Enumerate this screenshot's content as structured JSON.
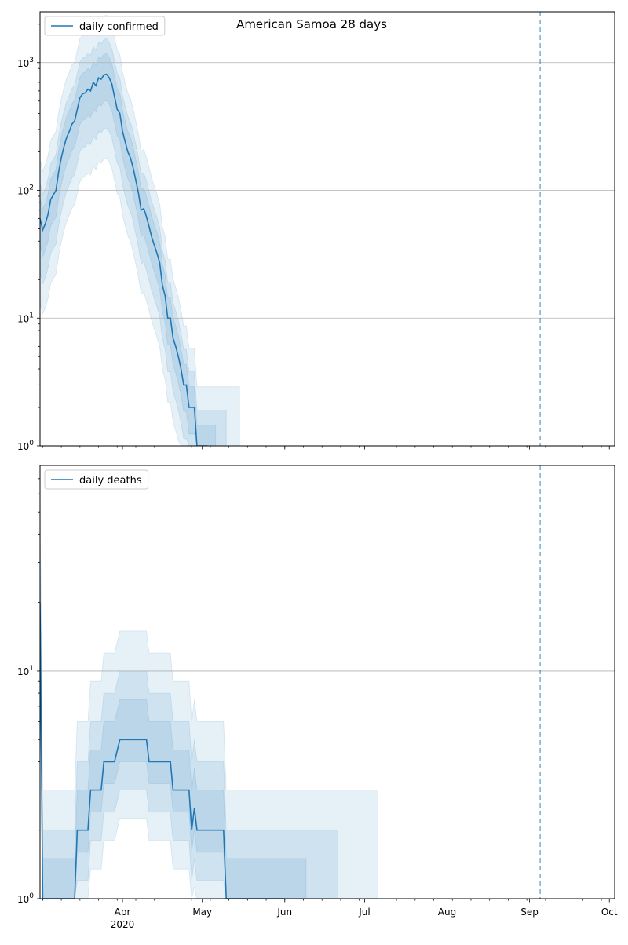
{
  "chart_data": {
    "type": "line",
    "title": "American Samoa 28 days",
    "x_range": [
      "2020-03-01",
      "2020-10-03"
    ],
    "x_ticks": [
      {
        "date": "2020-04-01",
        "label": "Apr",
        "sublabel": "2020"
      },
      {
        "date": "2020-05-01",
        "label": "May",
        "sublabel": ""
      },
      {
        "date": "2020-06-01",
        "label": "Jun",
        "sublabel": ""
      },
      {
        "date": "2020-07-01",
        "label": "Jul",
        "sublabel": ""
      },
      {
        "date": "2020-08-01",
        "label": "Aug",
        "sublabel": ""
      },
      {
        "date": "2020-09-01",
        "label": "Sep",
        "sublabel": ""
      },
      {
        "date": "2020-10-01",
        "label": "Oct",
        "sublabel": ""
      }
    ],
    "vline_date": "2020-09-05",
    "line_color": "#1f77b4",
    "band_color": "#1f77b4",
    "panels": [
      {
        "legend": "daily confirmed",
        "legend_position": "upper left",
        "scale": "log",
        "ylim": [
          1,
          2500
        ],
        "major_ticks": [
          {
            "value": 1,
            "base": "10",
            "exp": "0"
          },
          {
            "value": 10,
            "base": "10",
            "exp": "1"
          },
          {
            "value": 100,
            "base": "10",
            "exp": "2"
          },
          {
            "value": 1000,
            "base": "10",
            "exp": "3"
          }
        ],
        "grid": true,
        "series": {
          "name": "daily confirmed",
          "points": [
            [
              "2020-03-01",
              60
            ],
            [
              "2020-03-02",
              49
            ],
            [
              "2020-03-03",
              55
            ],
            [
              "2020-03-04",
              65
            ],
            [
              "2020-03-05",
              85
            ],
            [
              "2020-03-06",
              92
            ],
            [
              "2020-03-07",
              100
            ],
            [
              "2020-03-08",
              140
            ],
            [
              "2020-03-09",
              180
            ],
            [
              "2020-03-10",
              220
            ],
            [
              "2020-03-11",
              260
            ],
            [
              "2020-03-12",
              290
            ],
            [
              "2020-03-13",
              330
            ],
            [
              "2020-03-14",
              350
            ],
            [
              "2020-03-15",
              430
            ],
            [
              "2020-03-16",
              530
            ],
            [
              "2020-03-17",
              570
            ],
            [
              "2020-03-18",
              580
            ],
            [
              "2020-03-19",
              620
            ],
            [
              "2020-03-20",
              600
            ],
            [
              "2020-03-21",
              700
            ],
            [
              "2020-03-22",
              660
            ],
            [
              "2020-03-23",
              760
            ],
            [
              "2020-03-24",
              740
            ],
            [
              "2020-03-25",
              800
            ],
            [
              "2020-03-26",
              810
            ],
            [
              "2020-03-27",
              760
            ],
            [
              "2020-03-28",
              680
            ],
            [
              "2020-03-29",
              540
            ],
            [
              "2020-03-30",
              430
            ],
            [
              "2020-03-31",
              400
            ],
            [
              "2020-04-01",
              290
            ],
            [
              "2020-04-02",
              240
            ],
            [
              "2020-04-03",
              200
            ],
            [
              "2020-04-04",
              180
            ],
            [
              "2020-04-05",
              150
            ],
            [
              "2020-04-06",
              120
            ],
            [
              "2020-04-07",
              95
            ],
            [
              "2020-04-08",
              70
            ],
            [
              "2020-04-09",
              72
            ],
            [
              "2020-04-10",
              62
            ],
            [
              "2020-04-11",
              52
            ],
            [
              "2020-04-12",
              43
            ],
            [
              "2020-04-13",
              37
            ],
            [
              "2020-04-14",
              32
            ],
            [
              "2020-04-15",
              27
            ],
            [
              "2020-04-16",
              18
            ],
            [
              "2020-04-17",
              15
            ],
            [
              "2020-04-18",
              10
            ],
            [
              "2020-04-19",
              10
            ],
            [
              "2020-04-20",
              7
            ],
            [
              "2020-04-21",
              6
            ],
            [
              "2020-04-22",
              5
            ],
            [
              "2020-04-23",
              4
            ],
            [
              "2020-04-24",
              3
            ],
            [
              "2020-04-25",
              3
            ],
            [
              "2020-04-26",
              2
            ],
            [
              "2020-04-27",
              2
            ],
            [
              "2020-04-28",
              2
            ],
            [
              "2020-04-29",
              1
            ],
            [
              "2020-04-30",
              1
            ],
            [
              "2020-05-01",
              1
            ],
            [
              "2020-05-02",
              1
            ],
            [
              "2020-05-03",
              1
            ]
          ]
        },
        "bands": [
          {
            "opacity": 0.11,
            "upper_factor": 2.9,
            "lower_factor": 0.22,
            "days_after_end": 12
          },
          {
            "opacity": 0.11,
            "upper_factor": 1.9,
            "lower_factor": 0.38,
            "days_after_end": 7
          },
          {
            "opacity": 0.11,
            "upper_factor": 1.45,
            "lower_factor": 0.62,
            "days_after_end": 3
          }
        ]
      },
      {
        "legend": "daily deaths",
        "legend_position": "upper left",
        "scale": "log",
        "ylim": [
          1,
          80
        ],
        "major_ticks": [
          {
            "value": 1,
            "base": "10",
            "exp": "0"
          },
          {
            "value": 10,
            "base": "10",
            "exp": "1"
          }
        ],
        "grid": true,
        "series": {
          "name": "daily deaths",
          "points": [
            [
              "2020-03-01",
              20
            ],
            [
              "2020-03-02",
              1
            ],
            [
              "2020-03-14",
              1
            ],
            [
              "2020-03-15",
              2
            ],
            [
              "2020-03-19",
              2
            ],
            [
              "2020-03-20",
              3
            ],
            [
              "2020-03-24",
              3
            ],
            [
              "2020-03-25",
              4
            ],
            [
              "2020-03-29",
              4
            ],
            [
              "2020-03-31",
              5
            ],
            [
              "2020-04-10",
              5
            ],
            [
              "2020-04-11",
              4
            ],
            [
              "2020-04-19",
              4
            ],
            [
              "2020-04-20",
              3
            ],
            [
              "2020-04-26",
              3
            ],
            [
              "2020-04-27",
              2
            ],
            [
              "2020-04-28",
              2.5
            ],
            [
              "2020-04-29",
              2
            ],
            [
              "2020-05-09",
              2
            ],
            [
              "2020-05-10",
              1
            ],
            [
              "2020-06-01",
              1
            ]
          ]
        },
        "bands": [
          {
            "opacity": 0.11,
            "upper_factor": 3.0,
            "lower_factor": 0.45,
            "days_after_end": 35
          },
          {
            "opacity": 0.11,
            "upper_factor": 2.0,
            "lower_factor": 0.6,
            "days_after_end": 20
          },
          {
            "opacity": 0.11,
            "upper_factor": 1.5,
            "lower_factor": 0.8,
            "days_after_end": 8
          }
        ]
      }
    ]
  }
}
